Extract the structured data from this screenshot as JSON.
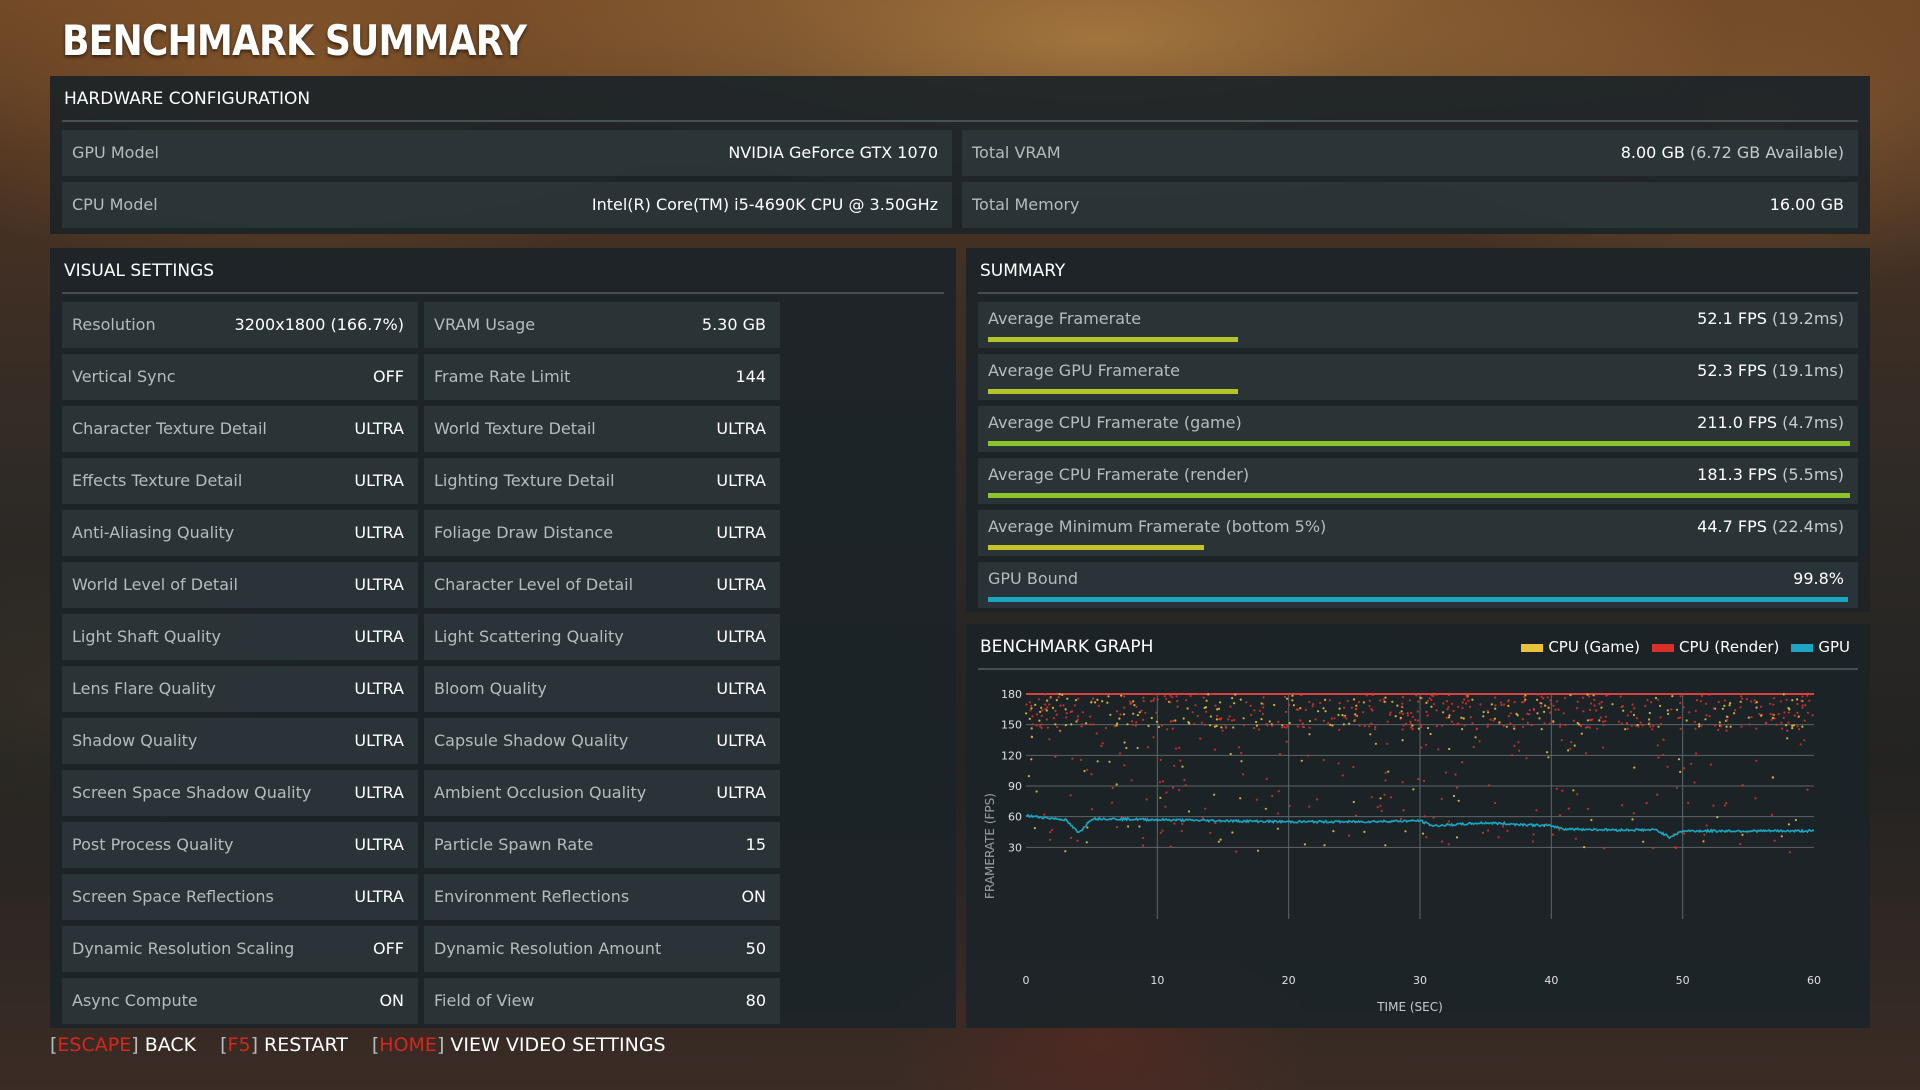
{
  "title": "BENCHMARK SUMMARY",
  "hardware": {
    "heading": "HARDWARE CONFIGURATION",
    "gpu_label": "GPU Model",
    "gpu_value": "NVIDIA GeForce GTX 1070",
    "cpu_label": "CPU Model",
    "cpu_value": "Intel(R) Core(TM) i5-4690K CPU @ 3.50GHz",
    "vram_label": "Total VRAM",
    "vram_value": "8.00 GB",
    "vram_sub": "(6.72 GB Available)",
    "mem_label": "Total Memory",
    "mem_value": "16.00 GB"
  },
  "visual": {
    "heading": "VISUAL SETTINGS",
    "left": [
      {
        "label": "Resolution",
        "value": "3200x1800 (166.7%)"
      },
      {
        "label": "Vertical Sync",
        "value": "OFF"
      },
      {
        "label": "Character Texture Detail",
        "value": "ULTRA"
      },
      {
        "label": "Effects Texture Detail",
        "value": "ULTRA"
      },
      {
        "label": "Anti-Aliasing Quality",
        "value": "ULTRA"
      },
      {
        "label": "World Level of Detail",
        "value": "ULTRA"
      },
      {
        "label": "Light Shaft Quality",
        "value": "ULTRA"
      },
      {
        "label": "Lens Flare Quality",
        "value": "ULTRA"
      },
      {
        "label": "Shadow Quality",
        "value": "ULTRA"
      },
      {
        "label": "Screen Space Shadow Quality",
        "value": "ULTRA"
      },
      {
        "label": "Post Process Quality",
        "value": "ULTRA"
      },
      {
        "label": "Screen Space Reflections",
        "value": "ULTRA"
      },
      {
        "label": "Dynamic Resolution Scaling",
        "value": "OFF"
      },
      {
        "label": "Async Compute",
        "value": "ON"
      }
    ],
    "right": [
      {
        "label": "VRAM Usage",
        "value": "5.30 GB"
      },
      {
        "label": "Frame Rate Limit",
        "value": "144"
      },
      {
        "label": "World Texture Detail",
        "value": "ULTRA"
      },
      {
        "label": "Lighting Texture Detail",
        "value": "ULTRA"
      },
      {
        "label": "Foliage Draw Distance",
        "value": "ULTRA"
      },
      {
        "label": "Character Level of Detail",
        "value": "ULTRA"
      },
      {
        "label": "Light Scattering Quality",
        "value": "ULTRA"
      },
      {
        "label": "Bloom Quality",
        "value": "ULTRA"
      },
      {
        "label": "Capsule Shadow Quality",
        "value": "ULTRA"
      },
      {
        "label": "Ambient Occlusion Quality",
        "value": "ULTRA"
      },
      {
        "label": "Particle Spawn Rate",
        "value": "15"
      },
      {
        "label": "Environment Reflections",
        "value": "ON"
      },
      {
        "label": "Dynamic Resolution Amount",
        "value": "50"
      },
      {
        "label": "Field of View",
        "value": "80"
      }
    ]
  },
  "summary": {
    "heading": "SUMMARY",
    "items": [
      {
        "label": "Average Framerate",
        "value": "52.1 FPS",
        "sub": "(19.2ms)",
        "fill": 0.29,
        "color": "#b4c42a"
      },
      {
        "label": "Average GPU Framerate",
        "value": "52.3 FPS",
        "sub": "(19.1ms)",
        "fill": 0.29,
        "color": "#b4c42a"
      },
      {
        "label": "Average CPU Framerate (game)",
        "value": "211.0 FPS",
        "sub": "(4.7ms)",
        "fill": 1.0,
        "color": "#8cc42e"
      },
      {
        "label": "Average CPU Framerate (render)",
        "value": "181.3 FPS",
        "sub": "(5.5ms)",
        "fill": 1.0,
        "color": "#8cc42e"
      },
      {
        "label": "Average Minimum Framerate (bottom 5%)",
        "value": "44.7 FPS",
        "sub": "(22.4ms)",
        "fill": 0.25,
        "color": "#c4c42a"
      },
      {
        "label": "GPU Bound",
        "value": "99.8%",
        "sub": "",
        "fill": 0.998,
        "color": "#1aa6c0"
      }
    ]
  },
  "graph": {
    "heading": "BENCHMARK GRAPH",
    "legend": [
      {
        "label": "CPU (Game)",
        "color": "#e8c23a"
      },
      {
        "label": "CPU (Render)",
        "color": "#d9302a"
      },
      {
        "label": "GPU",
        "color": "#1aa6c0"
      }
    ]
  },
  "chart_data": {
    "type": "scatter",
    "title": "BENCHMARK GRAPH",
    "xlabel": "TIME (SEC)",
    "ylabel": "FRAMERATE (FPS)",
    "xlim": [
      0,
      60
    ],
    "ylim": [
      0,
      180
    ],
    "x_ticks": [
      "0",
      "10",
      "20",
      "30",
      "40",
      "50",
      "60"
    ],
    "y_ticks": [
      "30",
      "60",
      "90",
      "120",
      "150",
      "180"
    ],
    "grid": true,
    "legend_position": "top-right",
    "series": [
      {
        "name": "CPU (Game)",
        "type": "scatter",
        "color": "#e8c23a",
        "values_range": [
          20,
          180
        ]
      },
      {
        "name": "CPU (Render)",
        "type": "scatter",
        "color": "#d9302a",
        "values_range": [
          20,
          180
        ]
      },
      {
        "name": "GPU",
        "type": "line",
        "color": "#1aa6c0",
        "x": [
          0,
          3,
          4,
          5,
          6,
          10,
          15,
          20,
          25,
          30,
          31,
          35,
          40,
          41,
          45,
          48,
          49,
          50,
          55,
          60
        ],
        "values": [
          61,
          57,
          44,
          58,
          58,
          57,
          56,
          55,
          55,
          56,
          51,
          54,
          51,
          48,
          47,
          47,
          40,
          46,
          46,
          46
        ]
      }
    ]
  },
  "footer": [
    {
      "key": "ESCAPE",
      "action": "BACK"
    },
    {
      "key": "F5",
      "action": "RESTART"
    },
    {
      "key": "HOME",
      "action": "VIEW VIDEO SETTINGS"
    }
  ]
}
